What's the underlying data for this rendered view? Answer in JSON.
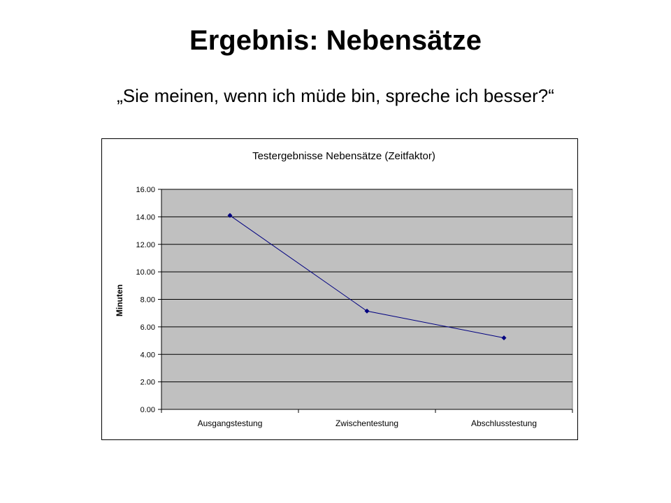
{
  "slide": {
    "title": "Ergebnis: Nebensätze",
    "subtitle": "„Sie meinen, wenn ich müde bin, spreche ich besser?“"
  },
  "colors": {
    "plot_background": "#c0c0c0",
    "series": "#000080",
    "gridline": "#000000"
  },
  "chart_data": {
    "type": "line",
    "title": "Testergebnisse Nebensätze (Zeitfaktor)",
    "xlabel": "",
    "ylabel": "Minuten",
    "categories": [
      "Ausgangstestung",
      "Zwischentestung",
      "Abschlusstestung"
    ],
    "series": [
      {
        "values": [
          14.1,
          7.15,
          5.2
        ]
      }
    ],
    "ylim": [
      0,
      16
    ],
    "yticks": [
      "0.00",
      "2.00",
      "4.00",
      "6.00",
      "8.00",
      "10.00",
      "12.00",
      "14.00",
      "16.00"
    ],
    "grid": true,
    "legend": "none"
  }
}
